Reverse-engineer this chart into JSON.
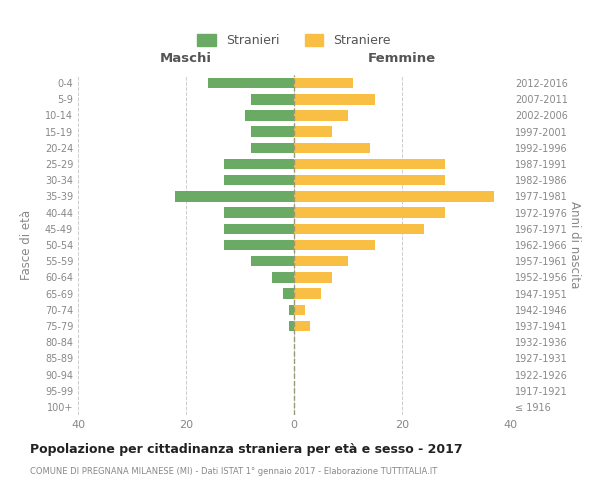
{
  "age_groups": [
    "100+",
    "95-99",
    "90-94",
    "85-89",
    "80-84",
    "75-79",
    "70-74",
    "65-69",
    "60-64",
    "55-59",
    "50-54",
    "45-49",
    "40-44",
    "35-39",
    "30-34",
    "25-29",
    "20-24",
    "15-19",
    "10-14",
    "5-9",
    "0-4"
  ],
  "birth_years": [
    "≤ 1916",
    "1917-1921",
    "1922-1926",
    "1927-1931",
    "1932-1936",
    "1937-1941",
    "1942-1946",
    "1947-1951",
    "1952-1956",
    "1957-1961",
    "1962-1966",
    "1967-1971",
    "1972-1976",
    "1977-1981",
    "1982-1986",
    "1987-1991",
    "1992-1996",
    "1997-2001",
    "2002-2006",
    "2007-2011",
    "2012-2016"
  ],
  "males": [
    0,
    0,
    0,
    0,
    0,
    1,
    1,
    2,
    4,
    8,
    13,
    13,
    13,
    22,
    13,
    13,
    8,
    8,
    9,
    8,
    16
  ],
  "females": [
    0,
    0,
    0,
    0,
    0,
    3,
    2,
    5,
    7,
    10,
    15,
    24,
    28,
    37,
    28,
    28,
    14,
    7,
    10,
    15,
    11
  ],
  "male_color": "#6aaa64",
  "female_color": "#f9bf45",
  "background_color": "#ffffff",
  "grid_color": "#cccccc",
  "title": "Popolazione per cittadinanza straniera per età e sesso - 2017",
  "subtitle": "COMUNE DI PREGNANA MILANESE (MI) - Dati ISTAT 1° gennaio 2017 - Elaborazione TUTTITALIA.IT",
  "xlabel_left": "Maschi",
  "xlabel_right": "Femmine",
  "ylabel_left": "Fasce di età",
  "ylabel_right": "Anni di nascita",
  "xlim": 40,
  "legend_stranieri": "Stranieri",
  "legend_straniere": "Straniere"
}
